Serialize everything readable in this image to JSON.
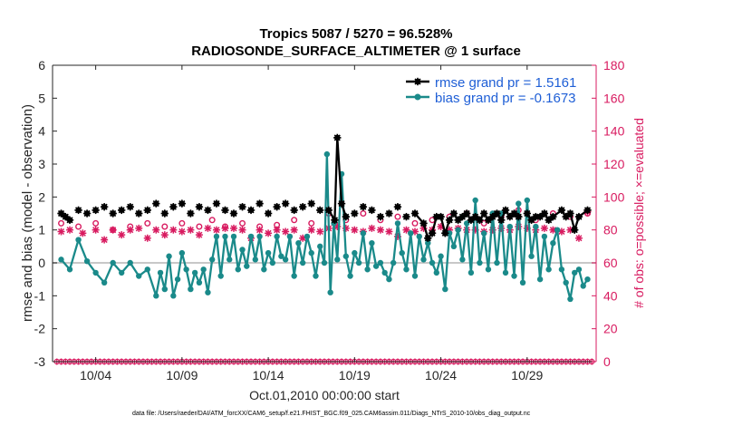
{
  "chart_data": {
    "type": "line",
    "title": "Tropics 5087 / 5270 = 96.528%",
    "subtitle": "RADIOSONDE_SURFACE_ALTIMETER @ 1 surface",
    "xlabel": "Oct.01,2010 00:00:00 start",
    "ylabel": "rmse and bias (model - observation)",
    "ylabel_right": "# of obs: o=possible; ×=evaluated",
    "footer": "data file: /Users/raeder/DAI/ATM_forcXX/CAM6_setup/f.e21.FHIST_BGC.f09_025.CAM6assim.011/Diags_NTrS_2010-10/obs_diag_output.nc",
    "xlim": [
      0.5,
      32
    ],
    "ylim": [
      -3,
      6
    ],
    "ylim_right": [
      0,
      180
    ],
    "x_ticks": [
      3,
      8,
      13,
      18,
      23,
      28
    ],
    "x_tick_labels": [
      "10/04",
      "10/09",
      "10/14",
      "10/19",
      "10/24",
      "10/29"
    ],
    "y_ticks": [
      -3,
      -2,
      -1,
      0,
      1,
      2,
      3,
      4,
      5,
      6
    ],
    "y_tick_labels": [
      "-3",
      "-2",
      "-1",
      "0",
      "1",
      "2",
      "3",
      "4",
      "5",
      "6"
    ],
    "y_ticks_right": [
      0,
      20,
      40,
      60,
      80,
      100,
      120,
      140,
      160,
      180
    ],
    "y_tick_labels_right": [
      "0",
      "20",
      "40",
      "60",
      "80",
      "100",
      "120",
      "140",
      "160",
      "180"
    ],
    "zero_line": 0,
    "legend": [
      {
        "name": "rmse grand pr = 1.5161",
        "color": "#000000"
      },
      {
        "name": "bias grand pr = -0.1673",
        "color": "#1a8a8a"
      }
    ],
    "colors": {
      "rmse": "#000000",
      "bias": "#1a8a8a",
      "nobs": "#d81b60",
      "zero": "#c8c8c8"
    },
    "rmse_points": [
      {
        "x": 1.0,
        "y": 1.5
      },
      {
        "x": 1.25,
        "y": 1.4
      },
      {
        "x": 1.5,
        "y": 1.3
      },
      {
        "x": 2.0,
        "y": 1.6
      },
      {
        "x": 2.5,
        "y": 1.5
      },
      {
        "x": 3.0,
        "y": 1.6
      },
      {
        "x": 3.5,
        "y": 1.7
      },
      {
        "x": 4.0,
        "y": 1.5
      },
      {
        "x": 4.5,
        "y": 1.6
      },
      {
        "x": 5.0,
        "y": 1.7
      },
      {
        "x": 5.5,
        "y": 1.5
      },
      {
        "x": 6.0,
        "y": 1.6
      },
      {
        "x": 6.5,
        "y": 1.8
      },
      {
        "x": 7.0,
        "y": 1.5
      },
      {
        "x": 7.5,
        "y": 1.7
      },
      {
        "x": 8.0,
        "y": 1.8
      },
      {
        "x": 8.5,
        "y": 1.5
      },
      {
        "x": 9.0,
        "y": 1.7
      },
      {
        "x": 9.5,
        "y": 1.6
      },
      {
        "x": 10.0,
        "y": 1.8
      },
      {
        "x": 10.5,
        "y": 1.6
      },
      {
        "x": 11.0,
        "y": 1.5
      },
      {
        "x": 11.5,
        "y": 1.7
      },
      {
        "x": 12.0,
        "y": 1.6
      },
      {
        "x": 12.5,
        "y": 1.8
      },
      {
        "x": 13.0,
        "y": 1.5
      },
      {
        "x": 13.5,
        "y": 1.7
      },
      {
        "x": 14.0,
        "y": 1.8
      },
      {
        "x": 14.5,
        "y": 1.6
      },
      {
        "x": 15.0,
        "y": 1.7
      },
      {
        "x": 15.5,
        "y": 1.8
      },
      {
        "x": 16.0,
        "y": 1.6
      },
      {
        "x": 16.5,
        "y": 1.6
      },
      {
        "x": 16.85,
        "y": 1.3
      },
      {
        "x": 17.0,
        "y": 3.8
      },
      {
        "x": 17.25,
        "y": 1.8
      },
      {
        "x": 17.5,
        "y": 1.4
      },
      {
        "x": 18.0,
        "y": 1.5
      },
      {
        "x": 18.5,
        "y": 1.7
      },
      {
        "x": 19.0,
        "y": 1.6
      },
      {
        "x": 19.5,
        "y": 1.4
      },
      {
        "x": 20.0,
        "y": 1.5
      },
      {
        "x": 20.5,
        "y": 1.7
      },
      {
        "x": 21.0,
        "y": 1.4
      },
      {
        "x": 21.5,
        "y": 1.5
      },
      {
        "x": 22.0,
        "y": 1.2
      },
      {
        "x": 22.25,
        "y": 0.75
      },
      {
        "x": 22.5,
        "y": 0.9
      },
      {
        "x": 22.75,
        "y": 1.4
      },
      {
        "x": 23.0,
        "y": 1.4
      },
      {
        "x": 23.25,
        "y": 0.9
      },
      {
        "x": 23.5,
        "y": 1.3
      },
      {
        "x": 23.75,
        "y": 1.5
      },
      {
        "x": 24.0,
        "y": 1.3
      },
      {
        "x": 24.25,
        "y": 1.4
      },
      {
        "x": 24.5,
        "y": 1.5
      },
      {
        "x": 24.75,
        "y": 1.3
      },
      {
        "x": 25.0,
        "y": 1.4
      },
      {
        "x": 25.25,
        "y": 1.3
      },
      {
        "x": 25.5,
        "y": 1.5
      },
      {
        "x": 25.75,
        "y": 1.3
      },
      {
        "x": 26.0,
        "y": 1.4
      },
      {
        "x": 26.25,
        "y": 1.5
      },
      {
        "x": 26.5,
        "y": 1.3
      },
      {
        "x": 26.75,
        "y": 1.6
      },
      {
        "x": 27.0,
        "y": 1.4
      },
      {
        "x": 27.25,
        "y": 1.5
      },
      {
        "x": 27.5,
        "y": 1.4
      },
      {
        "x": 28.0,
        "y": 1.5
      },
      {
        "x": 28.25,
        "y": 1.3
      },
      {
        "x": 28.5,
        "y": 1.4
      },
      {
        "x": 28.75,
        "y": 1.4
      },
      {
        "x": 29.0,
        "y": 1.5
      },
      {
        "x": 29.25,
        "y": 1.3
      },
      {
        "x": 29.5,
        "y": 1.4
      },
      {
        "x": 30.0,
        "y": 1.6
      },
      {
        "x": 30.25,
        "y": 1.4
      },
      {
        "x": 30.5,
        "y": 1.5
      },
      {
        "x": 30.75,
        "y": 1.0
      },
      {
        "x": 31.0,
        "y": 1.4
      },
      {
        "x": 31.5,
        "y": 1.6
      }
    ],
    "bias_points": [
      {
        "x": 1.0,
        "y": 0.1
      },
      {
        "x": 1.5,
        "y": -0.2
      },
      {
        "x": 2.0,
        "y": 0.7
      },
      {
        "x": 2.5,
        "y": 0.05
      },
      {
        "x": 3.0,
        "y": -0.3
      },
      {
        "x": 3.5,
        "y": -0.6
      },
      {
        "x": 4.0,
        "y": 0.0
      },
      {
        "x": 4.5,
        "y": -0.3
      },
      {
        "x": 5.0,
        "y": 0.0
      },
      {
        "x": 5.5,
        "y": -0.4
      },
      {
        "x": 6.0,
        "y": -0.2
      },
      {
        "x": 6.5,
        "y": -1.0
      },
      {
        "x": 6.75,
        "y": -0.3
      },
      {
        "x": 7.0,
        "y": -0.8
      },
      {
        "x": 7.25,
        "y": 0.2
      },
      {
        "x": 7.5,
        "y": -1.0
      },
      {
        "x": 7.75,
        "y": -0.5
      },
      {
        "x": 8.0,
        "y": 0.3
      },
      {
        "x": 8.25,
        "y": -0.2
      },
      {
        "x": 8.5,
        "y": -0.8
      },
      {
        "x": 8.75,
        "y": -0.3
      },
      {
        "x": 9.0,
        "y": -0.6
      },
      {
        "x": 9.25,
        "y": -0.2
      },
      {
        "x": 9.5,
        "y": -0.9
      },
      {
        "x": 9.75,
        "y": 0.1
      },
      {
        "x": 10.0,
        "y": 0.8
      },
      {
        "x": 10.25,
        "y": -0.4
      },
      {
        "x": 10.5,
        "y": 0.8
      },
      {
        "x": 10.75,
        "y": 0.1
      },
      {
        "x": 11.0,
        "y": 0.8
      },
      {
        "x": 11.25,
        "y": -0.2
      },
      {
        "x": 11.5,
        "y": 0.4
      },
      {
        "x": 11.75,
        "y": -0.1
      },
      {
        "x": 12.0,
        "y": 0.8
      },
      {
        "x": 12.25,
        "y": 0.1
      },
      {
        "x": 12.5,
        "y": 0.8
      },
      {
        "x": 12.75,
        "y": -0.2
      },
      {
        "x": 13.0,
        "y": 0.3
      },
      {
        "x": 13.25,
        "y": 0.0
      },
      {
        "x": 13.5,
        "y": 0.8
      },
      {
        "x": 13.75,
        "y": 0.2
      },
      {
        "x": 14.0,
        "y": 0.1
      },
      {
        "x": 14.25,
        "y": 0.8
      },
      {
        "x": 14.5,
        "y": -0.4
      },
      {
        "x": 14.75,
        "y": 0.6
      },
      {
        "x": 15.0,
        "y": 0.0
      },
      {
        "x": 15.25,
        "y": 0.8
      },
      {
        "x": 15.5,
        "y": 0.3
      },
      {
        "x": 15.75,
        "y": -0.4
      },
      {
        "x": 16.0,
        "y": 0.5
      },
      {
        "x": 16.25,
        "y": 0.0
      },
      {
        "x": 16.4,
        "y": 3.3
      },
      {
        "x": 16.6,
        "y": -0.9
      },
      {
        "x": 16.8,
        "y": 1.2
      },
      {
        "x": 17.0,
        "y": 0.1
      },
      {
        "x": 17.25,
        "y": 2.7
      },
      {
        "x": 17.5,
        "y": 0.2
      },
      {
        "x": 17.75,
        "y": -0.4
      },
      {
        "x": 18.0,
        "y": 0.3
      },
      {
        "x": 18.25,
        "y": 0.0
      },
      {
        "x": 18.5,
        "y": 0.9
      },
      {
        "x": 18.75,
        "y": -0.2
      },
      {
        "x": 19.0,
        "y": 0.6
      },
      {
        "x": 19.25,
        "y": -0.1
      },
      {
        "x": 19.5,
        "y": 0.0
      },
      {
        "x": 19.75,
        "y": -0.3
      },
      {
        "x": 20.0,
        "y": -0.5
      },
      {
        "x": 20.25,
        "y": 0.0
      },
      {
        "x": 20.5,
        "y": 1.2
      },
      {
        "x": 20.75,
        "y": 0.3
      },
      {
        "x": 21.0,
        "y": -0.2
      },
      {
        "x": 21.25,
        "y": 0.9
      },
      {
        "x": 21.5,
        "y": -0.4
      },
      {
        "x": 21.75,
        "y": 0.8
      },
      {
        "x": 22.0,
        "y": 0.1
      },
      {
        "x": 22.25,
        "y": 0.6
      },
      {
        "x": 22.5,
        "y": 0.0
      },
      {
        "x": 22.75,
        "y": -0.3
      },
      {
        "x": 23.0,
        "y": 0.2
      },
      {
        "x": 23.25,
        "y": -0.8
      },
      {
        "x": 23.5,
        "y": 0.9
      },
      {
        "x": 23.75,
        "y": 0.5
      },
      {
        "x": 24.0,
        "y": 1.0
      },
      {
        "x": 24.25,
        "y": 0.1
      },
      {
        "x": 24.5,
        "y": 1.2
      },
      {
        "x": 24.75,
        "y": -0.3
      },
      {
        "x": 25.0,
        "y": 1.9
      },
      {
        "x": 25.25,
        "y": 0.0
      },
      {
        "x": 25.5,
        "y": 0.9
      },
      {
        "x": 25.75,
        "y": -0.2
      },
      {
        "x": 26.0,
        "y": 1.5
      },
      {
        "x": 26.25,
        "y": 0.0
      },
      {
        "x": 26.5,
        "y": 1.5
      },
      {
        "x": 26.75,
        "y": -0.3
      },
      {
        "x": 27.0,
        "y": 1.1
      },
      {
        "x": 27.25,
        "y": -0.4
      },
      {
        "x": 27.5,
        "y": 1.8
      },
      {
        "x": 27.75,
        "y": -0.6
      },
      {
        "x": 28.0,
        "y": 1.9
      },
      {
        "x": 28.25,
        "y": 0.2
      },
      {
        "x": 28.5,
        "y": 1.1
      },
      {
        "x": 28.75,
        "y": -0.5
      },
      {
        "x": 29.0,
        "y": 0.8
      },
      {
        "x": 29.25,
        "y": -0.2
      },
      {
        "x": 29.5,
        "y": 0.6
      },
      {
        "x": 29.75,
        "y": 1.0
      },
      {
        "x": 30.0,
        "y": -0.2
      },
      {
        "x": 30.25,
        "y": -0.6
      },
      {
        "x": 30.5,
        "y": -1.1
      },
      {
        "x": 30.75,
        "y": -0.3
      },
      {
        "x": 31.0,
        "y": -0.2
      },
      {
        "x": 31.25,
        "y": -0.7
      },
      {
        "x": 31.5,
        "y": -0.5
      }
    ],
    "nobs_possible": [
      {
        "x": 1.0,
        "y": 84
      },
      {
        "x": 2.0,
        "y": 82
      },
      {
        "x": 3.0,
        "y": 84
      },
      {
        "x": 4.0,
        "y": 80
      },
      {
        "x": 5.0,
        "y": 82
      },
      {
        "x": 6.0,
        "y": 84
      },
      {
        "x": 7.0,
        "y": 82
      },
      {
        "x": 8.0,
        "y": 84
      },
      {
        "x": 9.0,
        "y": 82
      },
      {
        "x": 9.75,
        "y": 86
      },
      {
        "x": 10.5,
        "y": 82
      },
      {
        "x": 11.5,
        "y": 84
      },
      {
        "x": 12.5,
        "y": 82
      },
      {
        "x": 13.5,
        "y": 83
      },
      {
        "x": 14.5,
        "y": 86
      },
      {
        "x": 15.5,
        "y": 84
      },
      {
        "x": 16.5,
        "y": 90
      },
      {
        "x": 17.5,
        "y": 86
      },
      {
        "x": 18.5,
        "y": 90
      },
      {
        "x": 19.5,
        "y": 86
      },
      {
        "x": 20.5,
        "y": 88
      },
      {
        "x": 21.5,
        "y": 84
      },
      {
        "x": 22.5,
        "y": 86
      },
      {
        "x": 23.5,
        "y": 88
      },
      {
        "x": 24.5,
        "y": 90
      },
      {
        "x": 25.5,
        "y": 84
      },
      {
        "x": 26.5,
        "y": 88
      },
      {
        "x": 27.5,
        "y": 92
      },
      {
        "x": 28.5,
        "y": 86
      },
      {
        "x": 29.5,
        "y": 90
      },
      {
        "x": 30.5,
        "y": 88
      },
      {
        "x": 31.5,
        "y": 90
      }
    ],
    "nobs_used": [
      {
        "x": 1.0,
        "y": 79
      },
      {
        "x": 1.5,
        "y": 80
      },
      {
        "x": 2.25,
        "y": 78
      },
      {
        "x": 3.0,
        "y": 80
      },
      {
        "x": 3.5,
        "y": 74
      },
      {
        "x": 4.0,
        "y": 80
      },
      {
        "x": 4.5,
        "y": 77
      },
      {
        "x": 5.0,
        "y": 80
      },
      {
        "x": 5.5,
        "y": 81
      },
      {
        "x": 6.0,
        "y": 75
      },
      {
        "x": 6.5,
        "y": 80
      },
      {
        "x": 7.0,
        "y": 77
      },
      {
        "x": 7.5,
        "y": 80
      },
      {
        "x": 8.0,
        "y": 79
      },
      {
        "x": 8.5,
        "y": 80
      },
      {
        "x": 9.0,
        "y": 77
      },
      {
        "x": 9.5,
        "y": 81
      },
      {
        "x": 10.0,
        "y": 80
      },
      {
        "x": 10.5,
        "y": 81
      },
      {
        "x": 11.0,
        "y": 81
      },
      {
        "x": 11.5,
        "y": 80
      },
      {
        "x": 12.0,
        "y": 75
      },
      {
        "x": 12.5,
        "y": 80
      },
      {
        "x": 13.0,
        "y": 78
      },
      {
        "x": 13.5,
        "y": 80
      },
      {
        "x": 14.0,
        "y": 79
      },
      {
        "x": 14.5,
        "y": 80
      },
      {
        "x": 15.0,
        "y": 75
      },
      {
        "x": 15.5,
        "y": 80
      },
      {
        "x": 16.0,
        "y": 79
      },
      {
        "x": 16.5,
        "y": 81
      },
      {
        "x": 17.0,
        "y": 82
      },
      {
        "x": 17.5,
        "y": 81
      },
      {
        "x": 18.0,
        "y": 80
      },
      {
        "x": 18.5,
        "y": 79
      },
      {
        "x": 19.0,
        "y": 81
      },
      {
        "x": 19.5,
        "y": 80
      },
      {
        "x": 20.0,
        "y": 79
      },
      {
        "x": 20.5,
        "y": 76
      },
      {
        "x": 21.0,
        "y": 80
      },
      {
        "x": 21.5,
        "y": 79
      },
      {
        "x": 22.0,
        "y": 81
      },
      {
        "x": 22.5,
        "y": 80
      },
      {
        "x": 23.0,
        "y": 82
      },
      {
        "x": 23.5,
        "y": 80
      },
      {
        "x": 24.0,
        "y": 81
      },
      {
        "x": 24.5,
        "y": 80
      },
      {
        "x": 25.0,
        "y": 80
      },
      {
        "x": 25.5,
        "y": 79
      },
      {
        "x": 26.0,
        "y": 80
      },
      {
        "x": 26.5,
        "y": 81
      },
      {
        "x": 27.0,
        "y": 80
      },
      {
        "x": 27.5,
        "y": 82
      },
      {
        "x": 28.0,
        "y": 81
      },
      {
        "x": 28.5,
        "y": 80
      },
      {
        "x": 29.0,
        "y": 81
      },
      {
        "x": 29.5,
        "y": 80
      },
      {
        "x": 30.0,
        "y": 79
      },
      {
        "x": 30.5,
        "y": 80
      },
      {
        "x": 31.0,
        "y": 75
      },
      {
        "x": 31.5,
        "y": 91
      }
    ],
    "nobs_bottom_markers": {
      "value": 0,
      "x_start": 0.75,
      "x_end": 31.75,
      "x_step": 0.25
    }
  }
}
